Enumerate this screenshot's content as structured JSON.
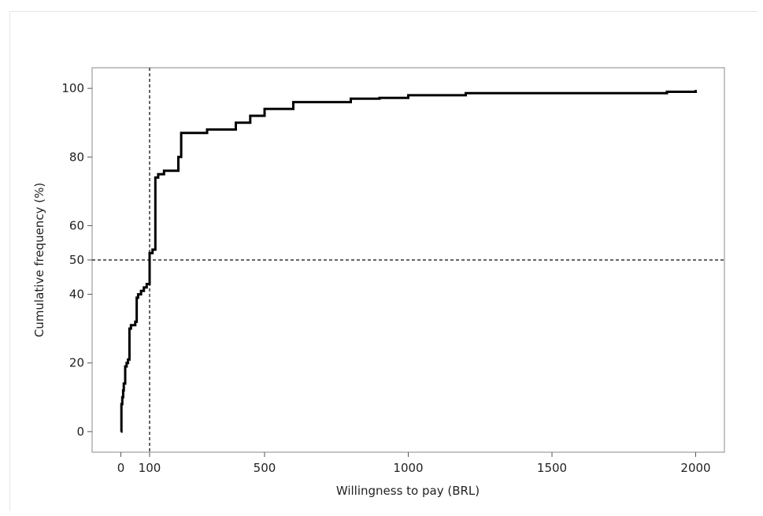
{
  "chart_data": {
    "type": "line",
    "step": true,
    "xlabel": "Willingness to pay (BRL)",
    "ylabel": "Cumulative frequency (%)",
    "xlim": [
      -100,
      2100
    ],
    "ylim": [
      -6,
      106
    ],
    "x_ticks": [
      0,
      100,
      500,
      1000,
      1500,
      2000
    ],
    "x_tick_labels": [
      "0",
      "100",
      "500",
      "1000",
      "1500",
      "2000"
    ],
    "y_ticks": [
      0,
      20,
      40,
      50,
      60,
      80,
      100
    ],
    "y_tick_labels": [
      "0",
      "20",
      "40",
      "50",
      "60",
      "80",
      "100"
    ],
    "grid": false,
    "series": [
      {
        "x": [
          0,
          2,
          5,
          8,
          10,
          15,
          20,
          25,
          30,
          35,
          50,
          55,
          60,
          70,
          80,
          90,
          100,
          110,
          120,
          130,
          150,
          200,
          210,
          300,
          400,
          450,
          500,
          600,
          800,
          900,
          1000,
          1200,
          1900,
          2000
        ],
        "y": [
          0,
          8,
          10,
          12,
          14,
          19,
          20,
          21,
          30,
          31,
          32,
          39,
          40,
          41,
          42,
          43,
          52,
          53,
          74,
          75,
          76,
          80,
          87,
          88,
          90,
          92,
          94,
          96,
          97,
          97.2,
          98,
          98.6,
          99,
          99.5
        ],
        "color": "#000000"
      }
    ],
    "reference_lines": [
      {
        "orientation": "vertical",
        "value": 100,
        "style": "dashed"
      },
      {
        "orientation": "horizontal",
        "value": 50,
        "style": "dashed"
      }
    ]
  }
}
